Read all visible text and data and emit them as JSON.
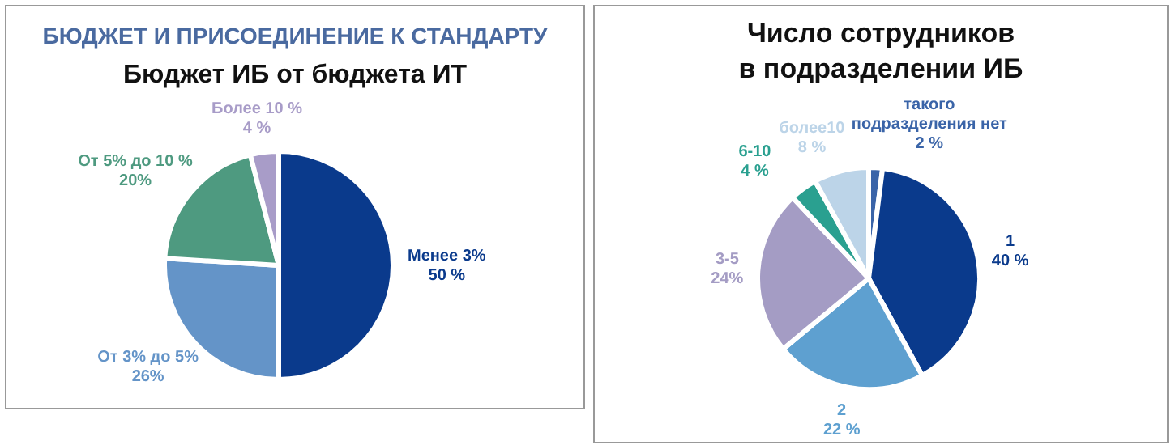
{
  "chart_data": [
    {
      "type": "pie",
      "title": "БЮДЖЕТ И ПРИСОЕДИНЕНИЕ К СТАНДАРТУ",
      "subtitle": "Бюджет ИБ от бюджета ИТ",
      "categories": [
        "Менее 3%",
        "От 3% до 5%",
        "От 5% до 10 %",
        "Более 10 %"
      ],
      "values": [
        50,
        26,
        20,
        4
      ],
      "value_labels": [
        "50 %",
        "26%",
        "20%",
        "4 %"
      ],
      "colors": [
        "#0a3a8c",
        "#6494c8",
        "#4e9a80",
        "#a89cc8"
      ],
      "legend": false
    },
    {
      "type": "pie",
      "title": "Число сотрудников в подразделении ИБ",
      "categories": [
        "такого подразделения нет",
        "1",
        "2",
        "3-5",
        "6-10",
        "более10"
      ],
      "values": [
        2,
        40,
        22,
        24,
        4,
        8
      ],
      "value_labels": [
        "2 %",
        "40 %",
        "22 %",
        "24%",
        "4 %",
        "8 %"
      ],
      "colors": [
        "#3a64a8",
        "#0a3a8c",
        "#5ea0d0",
        "#a49cc4",
        "#2aa090",
        "#bcd4e8"
      ],
      "legend": false
    }
  ]
}
